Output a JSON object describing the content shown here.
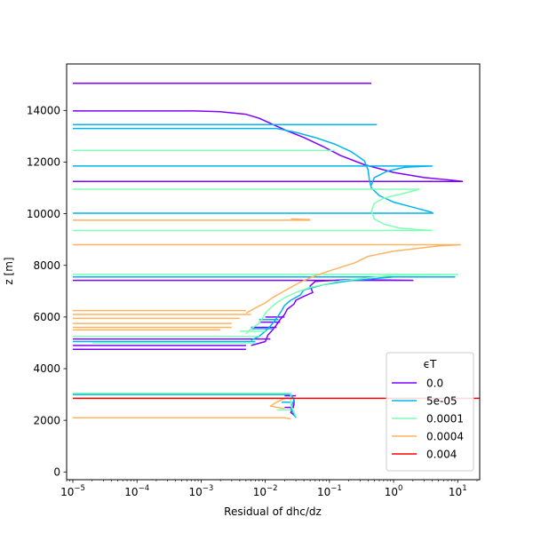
{
  "chart_data": {
    "type": "line",
    "title": "",
    "xlabel": "Residual of dhc/dz",
    "ylabel": "z [m]",
    "xscale": "log",
    "xlim": [
      8e-06,
      22
    ],
    "ylim": [
      -300,
      15800
    ],
    "x_ticks": [
      {
        "value": 1e-05,
        "base": "10",
        "exp": "−5"
      },
      {
        "value": 0.0001,
        "base": "10",
        "exp": "−4"
      },
      {
        "value": 0.001,
        "base": "10",
        "exp": "−3"
      },
      {
        "value": 0.01,
        "base": "10",
        "exp": "−2"
      },
      {
        "value": 0.1,
        "base": "10",
        "exp": "−1"
      },
      {
        "value": 1,
        "base": "10",
        "exp": "0"
      },
      {
        "value": 10,
        "base": "10",
        "exp": "1"
      }
    ],
    "y_ticks": [
      {
        "value": 0,
        "label": "0"
      },
      {
        "value": 2000,
        "label": "2000"
      },
      {
        "value": 4000,
        "label": "4000"
      },
      {
        "value": 6000,
        "label": "6000"
      },
      {
        "value": 8000,
        "label": "8000"
      },
      {
        "value": 10000,
        "label": "10000"
      },
      {
        "value": 12000,
        "label": "12000"
      },
      {
        "value": 14000,
        "label": "14000"
      }
    ],
    "grid": false,
    "legend": {
      "title": "ϵT",
      "placement": "lower-right"
    },
    "series": [
      {
        "name": "0.0",
        "color": "#7f00ff",
        "segments": [
          [
            [
              1e-05,
              15050
            ],
            [
              0.45,
              15050
            ]
          ],
          [
            [
              1e-05,
              13980
            ],
            [
              0.0008,
              13980
            ],
            [
              0.002,
              13950
            ],
            [
              0.005,
              13850
            ],
            [
              0.008,
              13700
            ],
            [
              0.012,
              13500
            ],
            [
              0.02,
              13250
            ],
            [
              0.04,
              12950
            ],
            [
              0.08,
              12600
            ],
            [
              0.15,
              12250
            ],
            [
              0.35,
              11900
            ],
            [
              1,
              11600
            ],
            [
              3,
              11400
            ],
            [
              8,
              11300
            ],
            [
              12,
              11250
            ]
          ],
          [
            [
              1e-05,
              11250
            ],
            [
              12,
              11250
            ]
          ],
          [
            [
              1e-05,
              7420
            ],
            [
              2,
              7420
            ],
            [
              0.2,
              7450
            ],
            [
              0.06,
              7380
            ],
            [
              0.05,
              7200
            ],
            [
              0.055,
              6950
            ],
            [
              0.04,
              6800
            ],
            [
              0.03,
              6650
            ],
            [
              0.028,
              6500
            ],
            [
              0.022,
              6300
            ],
            [
              0.02,
              6100
            ],
            [
              0.017,
              5900
            ],
            [
              0.015,
              5700
            ],
            [
              0.013,
              5500
            ],
            [
              0.011,
              5300
            ],
            [
              0.01,
              5050
            ],
            [
              0.006,
              4900
            ]
          ],
          [
            [
              1e-05,
              4750
            ],
            [
              0.005,
              4750
            ]
          ],
          [
            [
              1e-05,
              4900
            ],
            [
              0.005,
              4900
            ]
          ],
          [
            [
              1e-05,
              5150
            ],
            [
              0.012,
              5150
            ]
          ],
          [
            [
              0.006,
              5600
            ],
            [
              0.015,
              5600
            ]
          ],
          [
            [
              0.008,
              5800
            ],
            [
              0.017,
              5800
            ]
          ],
          [
            [
              0.01,
              6000
            ],
            [
              0.02,
              6000
            ]
          ],
          [
            [
              0.02,
              2850
            ],
            [
              0.028,
              2850
            ],
            [
              0.028,
              2600
            ],
            [
              0.025,
              2300
            ],
            [
              0.03,
              2150
            ]
          ],
          [
            [
              0.02,
              2500
            ],
            [
              0.028,
              2500
            ]
          ],
          [
            [
              0.02,
              2950
            ],
            [
              0.03,
              2950
            ]
          ]
        ]
      },
      {
        "name": "5e-05",
        "color": "#00b5eb",
        "segments": [
          [
            [
              1e-05,
              13450
            ],
            [
              0.55,
              13450
            ]
          ],
          [
            [
              1e-05,
              13300
            ],
            [
              0.015,
              13300
            ],
            [
              0.03,
              13150
            ],
            [
              0.06,
              12950
            ],
            [
              0.12,
              12700
            ],
            [
              0.22,
              12400
            ],
            [
              0.35,
              12050
            ],
            [
              0.4,
              11700
            ],
            [
              0.42,
              11300
            ],
            [
              0.45,
              11000
            ],
            [
              0.6,
              10700
            ],
            [
              1,
              10450
            ],
            [
              2,
              10250
            ],
            [
              4,
              10050
            ]
          ],
          [
            [
              1e-05,
              11850
            ],
            [
              4,
              11850
            ],
            [
              1.5,
              11800
            ],
            [
              0.8,
              11650
            ],
            [
              0.5,
              11400
            ],
            [
              0.45,
              11100
            ]
          ],
          [
            [
              1e-05,
              10020
            ],
            [
              4.2,
              10020
            ]
          ],
          [
            [
              1e-05,
              7550
            ],
            [
              9,
              7550
            ],
            [
              1,
              7550
            ],
            [
              0.2,
              7400
            ],
            [
              0.08,
              7250
            ],
            [
              0.04,
              7050
            ],
            [
              0.035,
              6850
            ],
            [
              0.025,
              6650
            ],
            [
              0.02,
              6450
            ],
            [
              0.018,
              6250
            ],
            [
              0.016,
              6050
            ],
            [
              0.014,
              5850
            ],
            [
              0.012,
              5650
            ],
            [
              0.01,
              5450
            ],
            [
              0.008,
              5250
            ],
            [
              0.006,
              5100
            ]
          ],
          [
            [
              1e-05,
              5050
            ],
            [
              0.007,
              5050
            ]
          ],
          [
            [
              0.006,
              5550
            ],
            [
              0.013,
              5550
            ]
          ],
          [
            [
              0.008,
              5900
            ],
            [
              0.016,
              5900
            ]
          ],
          [
            [
              1e-05,
              3000
            ],
            [
              0.025,
              3000
            ],
            [
              0.028,
              2800
            ],
            [
              0.025,
              2450
            ],
            [
              0.03,
              2100
            ]
          ],
          [
            [
              0.018,
              2700
            ],
            [
              0.026,
              2700
            ]
          ]
        ]
      },
      {
        "name": "0.0001",
        "color": "#80ffb4",
        "segments": [
          [
            [
              1e-05,
              12450
            ],
            [
              0.12,
              12450
            ]
          ],
          [
            [
              1e-05,
              10950
            ],
            [
              2.5,
              10950
            ],
            [
              1.5,
              10800
            ],
            [
              0.7,
              10600
            ],
            [
              0.5,
              10400
            ],
            [
              0.45,
              10100
            ],
            [
              0.5,
              9800
            ],
            [
              0.7,
              9600
            ],
            [
              1.2,
              9450
            ],
            [
              2.5,
              9380
            ],
            [
              4,
              9350
            ]
          ],
          [
            [
              1e-05,
              9350
            ],
            [
              4,
              9350
            ]
          ],
          [
            [
              1e-05,
              7650
            ],
            [
              10,
              7650
            ],
            [
              1,
              7620
            ],
            [
              0.15,
              7400
            ],
            [
              0.05,
              7150
            ],
            [
              0.03,
              6950
            ],
            [
              0.02,
              6750
            ],
            [
              0.015,
              6550
            ],
            [
              0.012,
              6350
            ],
            [
              0.01,
              6150
            ],
            [
              0.009,
              5950
            ],
            [
              0.008,
              5750
            ],
            [
              0.006,
              5550
            ],
            [
              0.005,
              5350
            ]
          ],
          [
            [
              1e-05,
              5250
            ],
            [
              0.008,
              5250
            ]
          ],
          [
            [
              2e-05,
              5000
            ],
            [
              0.007,
              5000
            ]
          ],
          [
            [
              0.004,
              5450
            ],
            [
              0.01,
              5450
            ]
          ],
          [
            [
              1e-05,
              3050
            ],
            [
              0.025,
              3050
            ],
            [
              0.025,
              2600
            ],
            [
              0.03,
              2150
            ]
          ],
          [
            [
              0.015,
              2400
            ],
            [
              0.025,
              2400
            ]
          ]
        ]
      },
      {
        "name": "0.0004",
        "color": "#ffb360",
        "segments": [
          [
            [
              0.025,
              9800
            ],
            [
              0.05,
              9770
            ]
          ],
          [
            [
              1e-05,
              9750
            ],
            [
              0.05,
              9750
            ]
          ],
          [
            [
              1e-05,
              8800
            ],
            [
              11,
              8800
            ],
            [
              5,
              8750
            ],
            [
              1,
              8550
            ],
            [
              0.4,
              8350
            ],
            [
              0.25,
              8100
            ],
            [
              0.12,
              7850
            ],
            [
              0.06,
              7600
            ],
            [
              0.035,
              7350
            ],
            [
              0.025,
              7150
            ],
            [
              0.018,
              6950
            ],
            [
              0.013,
              6750
            ],
            [
              0.01,
              6550
            ],
            [
              0.007,
              6350
            ],
            [
              0.005,
              6150
            ]
          ],
          [
            [
              1e-05,
              6250
            ],
            [
              0.005,
              6250
            ]
          ],
          [
            [
              1e-05,
              6100
            ],
            [
              0.006,
              6100
            ]
          ],
          [
            [
              1e-05,
              5950
            ],
            [
              0.004,
              5950
            ]
          ],
          [
            [
              1e-05,
              5750
            ],
            [
              0.003,
              5750
            ]
          ],
          [
            [
              1e-05,
              5600
            ],
            [
              0.003,
              5600
            ]
          ],
          [
            [
              1e-05,
              5500
            ],
            [
              0.002,
              5500
            ]
          ],
          [
            [
              1e-05,
              2850
            ],
            [
              0.02,
              2850
            ],
            [
              0.015,
              2700
            ],
            [
              0.012,
              2550
            ],
            [
              0.02,
              2450
            ]
          ],
          [
            [
              1e-05,
              2100
            ],
            [
              0.02,
              2100
            ],
            [
              0.025,
              2050
            ]
          ]
        ]
      },
      {
        "name": "0.004",
        "color": "#ff0000",
        "segments": [
          [
            [
              1e-05,
              2850
            ],
            [
              22,
              2850
            ]
          ]
        ]
      }
    ]
  }
}
